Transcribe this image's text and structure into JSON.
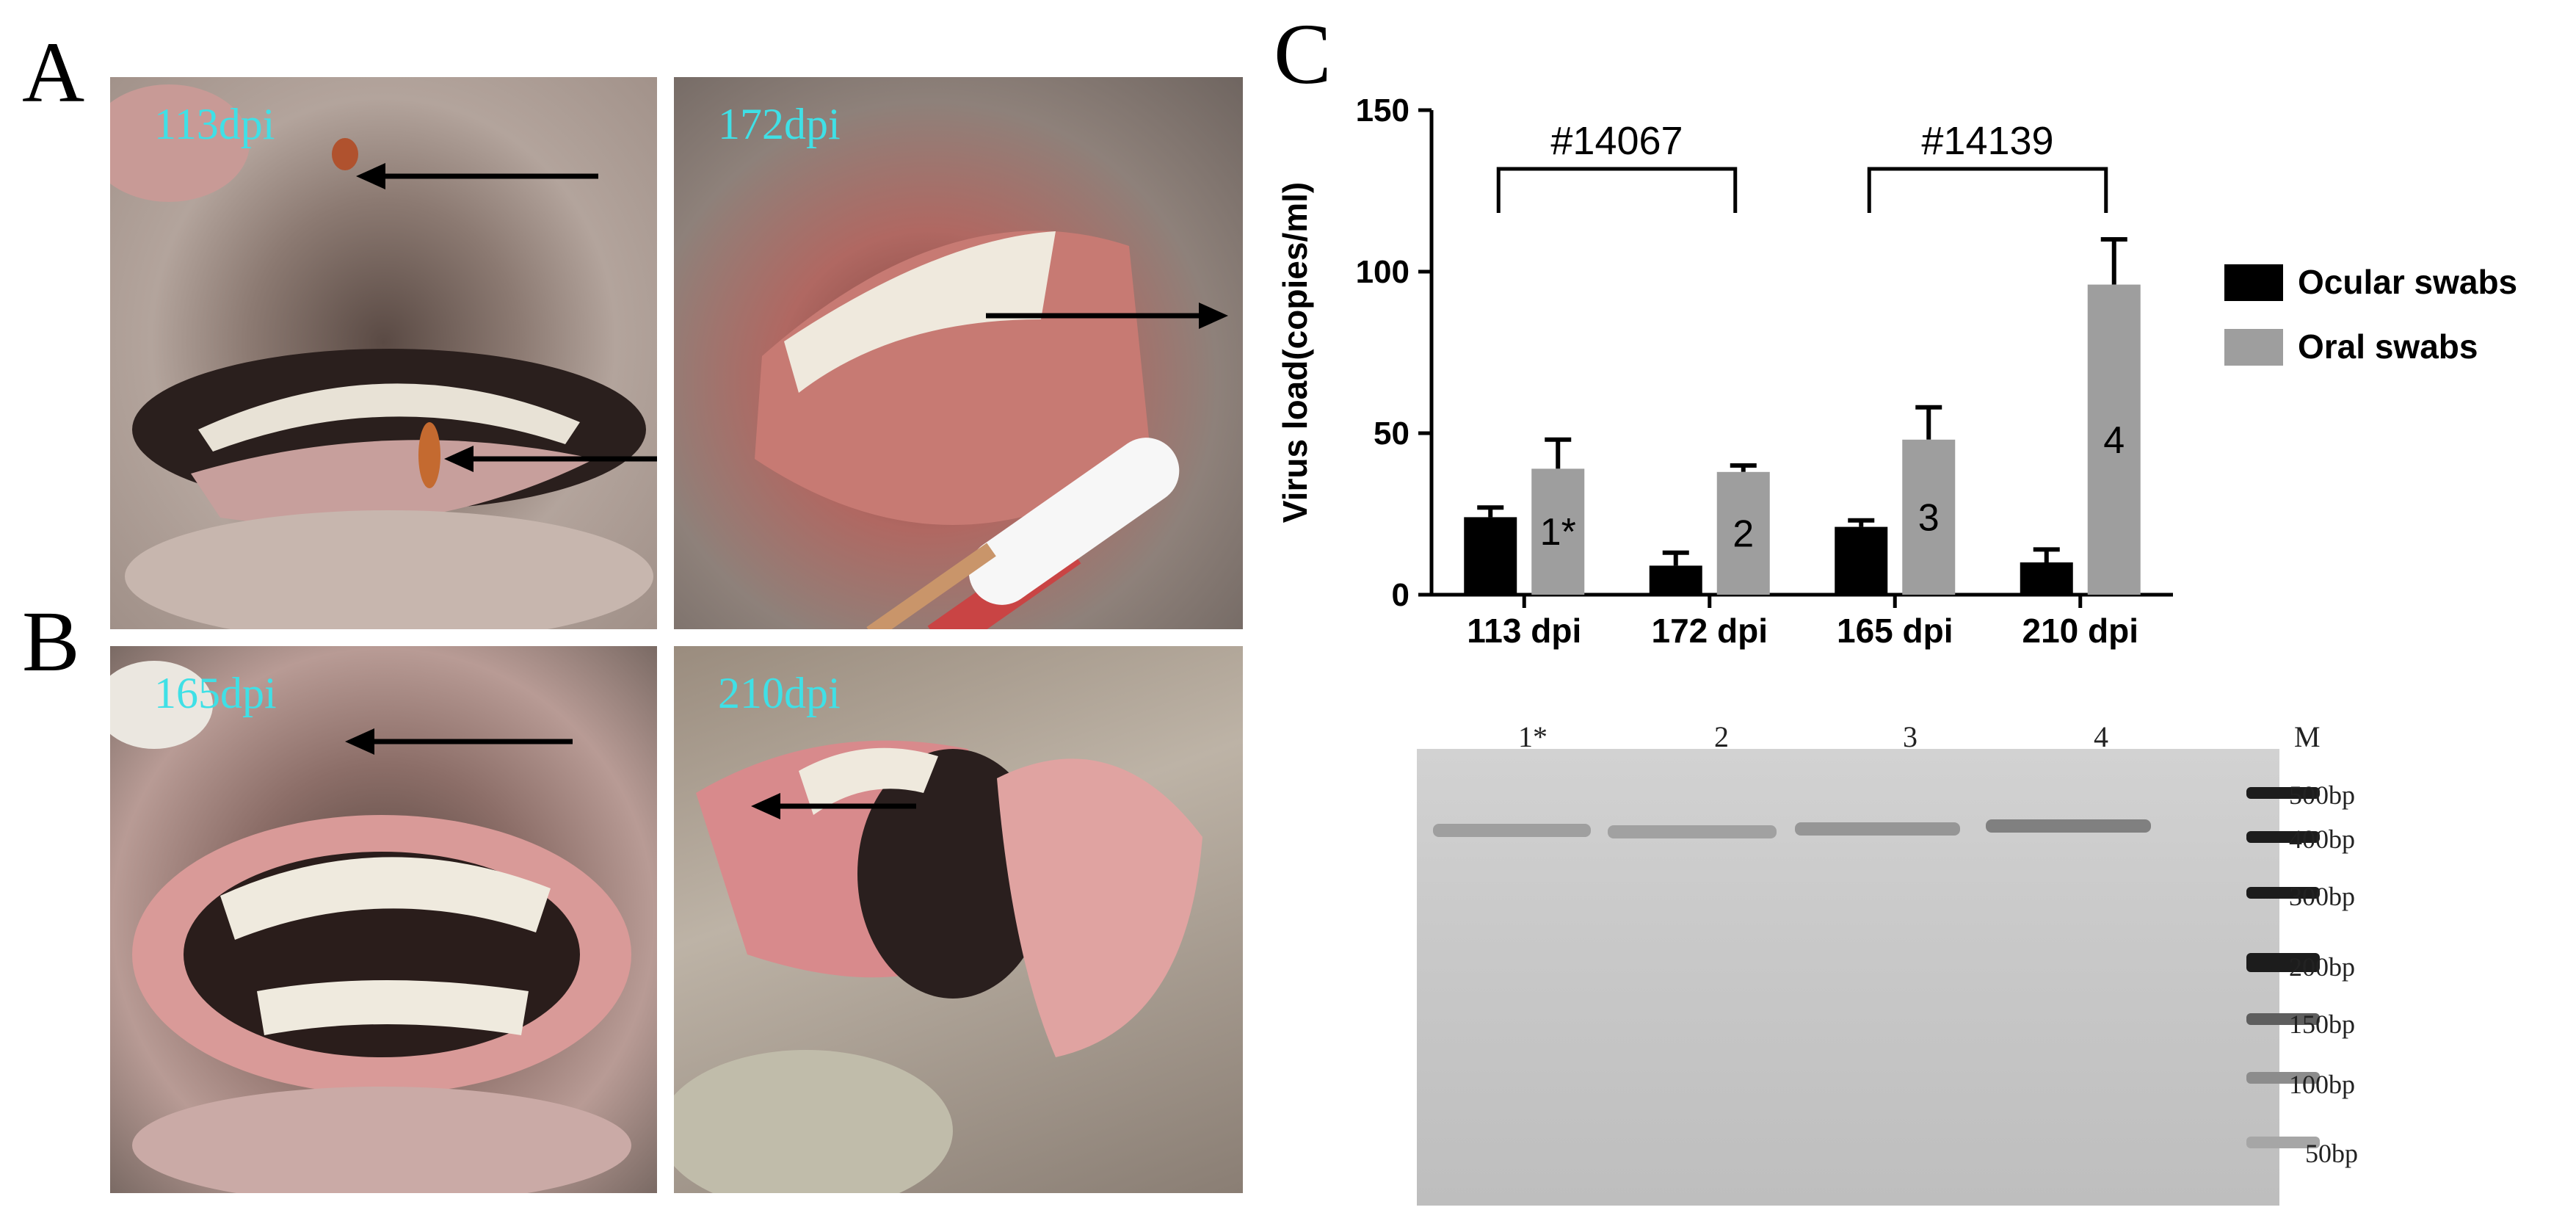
{
  "panels": {
    "a": {
      "letter": "A",
      "photos": [
        "113dpi",
        "172dpi"
      ]
    },
    "b": {
      "letter": "B",
      "photos": [
        "165dpi",
        "210dpi"
      ]
    },
    "c": {
      "letter": "C"
    }
  },
  "chart_data": {
    "type": "bar",
    "ylabel": "Virus load(copies/ml)",
    "ylim": [
      0,
      150
    ],
    "yticks": [
      0,
      50,
      100,
      150
    ],
    "categories": [
      "113 dpi",
      "172 dpi",
      "165 dpi",
      "210 dpi"
    ],
    "series": [
      {
        "name": "Ocular swabs",
        "color": "#000000",
        "values": [
          24,
          9,
          21,
          10
        ],
        "errors": [
          3,
          4,
          2,
          4
        ]
      },
      {
        "name": "Oral swabs",
        "color": "#9e9e9e",
        "values": [
          39,
          38,
          48,
          96
        ],
        "errors": [
          9,
          2,
          10,
          14
        ]
      }
    ],
    "bar_labels": [
      "1*",
      "2",
      "3",
      "4"
    ],
    "brackets": [
      {
        "label": "#14067",
        "from": "113 dpi",
        "to": "172 dpi"
      },
      {
        "label": "#14139",
        "from": "165 dpi",
        "to": "210 dpi"
      }
    ],
    "legend_position": "right"
  },
  "gel": {
    "lanes": [
      "1*",
      "2",
      "3",
      "4",
      "M"
    ],
    "ladder": [
      "500bp",
      "400bp",
      "300bp",
      "200bp",
      "150bp",
      "100bp",
      "50bp"
    ]
  },
  "colors": {
    "dpi_label": "#3fe0e6"
  }
}
